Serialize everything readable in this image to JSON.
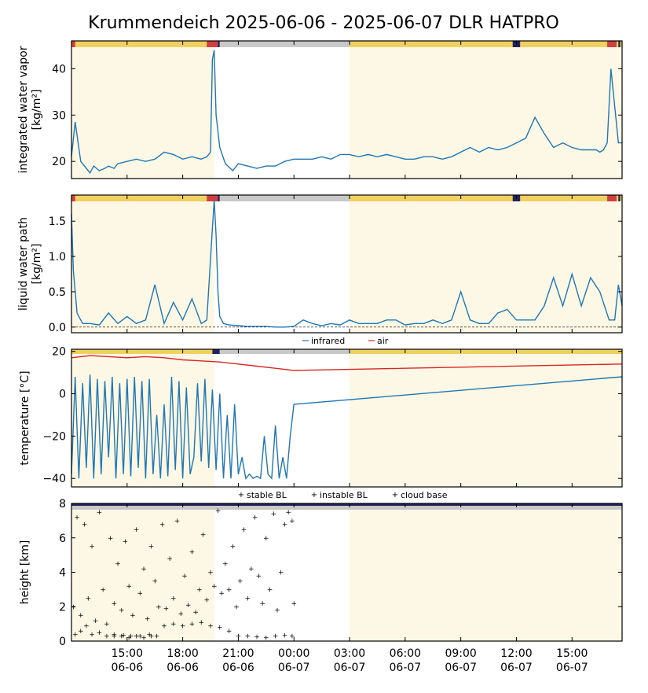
{
  "title": "Krummendeich  2025-06-06 - 2025-06-07  DLR HATPRO",
  "colors": {
    "series": "#1f77b4",
    "air": "#d62728",
    "stable": "#ff7f0e",
    "instable": "#2ca02c",
    "daylight_shade": "#fcf8e5",
    "flag_yellow": "#f0d060",
    "flag_gray": "#c8c8c8",
    "flag_navy": "#23235a",
    "flag_red": "#d04040"
  },
  "x_ticks": [
    {
      "time": "15:00",
      "date": "06-06"
    },
    {
      "time": "18:00",
      "date": "06-06"
    },
    {
      "time": "21:00",
      "date": "06-06"
    },
    {
      "time": "00:00",
      "date": "06-07"
    },
    {
      "time": "03:00",
      "date": "06-07"
    },
    {
      "time": "06:00",
      "date": "06-07"
    },
    {
      "time": "09:00",
      "date": "06-07"
    },
    {
      "time": "12:00",
      "date": "06-07"
    },
    {
      "time": "15:00",
      "date": "06-07"
    }
  ],
  "chart_data": [
    {
      "type": "line",
      "ylabel": "integrated water vapor\n[kg/m²]",
      "x_unit": "hours from 2025-06-06 00:00",
      "xlim": [
        12.0,
        41.7
      ],
      "ylim": [
        16.3,
        46.0
      ],
      "yticks": [
        20,
        30,
        40
      ],
      "series": [
        {
          "x": [
            12.0,
            12.2,
            12.5,
            12.8,
            13.0,
            13.2,
            13.5,
            13.8,
            14.0,
            14.3,
            14.5,
            15.0,
            15.5,
            16.0,
            16.5,
            17.0,
            17.5,
            18.0,
            18.5,
            19.0,
            19.3,
            19.5,
            19.6,
            19.7,
            19.8,
            20.0,
            20.3,
            20.7,
            21.0,
            21.5,
            22.0,
            22.5,
            23.0,
            23.5,
            24.0,
            24.5,
            25.0,
            25.5,
            26.0,
            26.5,
            27.0,
            27.5,
            28.0,
            28.5,
            29.0,
            29.5,
            30.0,
            30.5,
            31.0,
            31.5,
            32.0,
            32.5,
            33.0,
            33.5,
            34.0,
            34.5,
            35.0,
            35.5,
            36.0,
            36.5,
            37.0,
            37.5,
            38.0,
            38.5,
            39.0,
            39.5,
            40.0,
            40.3,
            40.5,
            40.7,
            40.9,
            41.1,
            41.5,
            41.7
          ],
          "values": [
            21,
            28.5,
            20,
            18.5,
            17.5,
            19,
            18,
            18.5,
            19,
            18.5,
            19.5,
            20,
            20.5,
            20,
            20.5,
            22,
            21.5,
            20.5,
            21,
            20.5,
            21,
            22,
            42,
            44,
            30,
            23,
            19.5,
            18,
            19.5,
            19,
            18.5,
            19,
            19,
            20,
            20.5,
            20.5,
            20.5,
            21,
            20.5,
            21.5,
            21.5,
            21,
            21.5,
            21,
            21.5,
            21,
            20.5,
            20.5,
            21,
            21,
            20.5,
            21,
            22,
            23,
            22,
            23,
            22.5,
            23,
            24,
            25,
            29.5,
            26,
            23,
            24,
            23,
            22.5,
            22.5,
            22.5,
            22,
            22.5,
            24,
            40,
            24,
            24
          ]
        }
      ]
    },
    {
      "type": "line",
      "ylabel": "liquid water path\n[kg/m²]",
      "x_unit": "hours from 2025-06-06 00:00",
      "xlim": [
        12.0,
        41.7
      ],
      "ylim": [
        -0.08,
        1.87
      ],
      "yticks": [
        0.0,
        0.5,
        1.0,
        1.5
      ],
      "series": [
        {
          "x": [
            12.0,
            12.1,
            12.3,
            12.6,
            13.0,
            13.5,
            14.0,
            14.5,
            15.0,
            15.5,
            16.0,
            16.5,
            17.0,
            17.5,
            18.0,
            18.5,
            19.0,
            19.3,
            19.6,
            19.7,
            19.8,
            19.9,
            20.0,
            20.2,
            20.5,
            21.0,
            21.5,
            22.0,
            22.5,
            23.0,
            23.5,
            24.0,
            24.5,
            25.0,
            25.5,
            26.0,
            26.5,
            27.0,
            27.5,
            28.0,
            28.5,
            29.0,
            29.5,
            30.0,
            30.5,
            31.0,
            31.5,
            32.0,
            32.5,
            33.0,
            33.5,
            34.0,
            34.5,
            35.0,
            35.5,
            36.0,
            36.5,
            37.0,
            37.5,
            38.0,
            38.5,
            39.0,
            39.5,
            40.0,
            40.5,
            41.0,
            41.3,
            41.5,
            41.7
          ],
          "values": [
            1.6,
            0.8,
            0.2,
            0.05,
            0.05,
            0.03,
            0.2,
            0.05,
            0.15,
            0.05,
            0.1,
            0.6,
            0.05,
            0.35,
            0.1,
            0.4,
            0.05,
            0.1,
            1.4,
            1.8,
            1.3,
            0.5,
            0.15,
            0.05,
            0.03,
            0.02,
            0.01,
            0.01,
            0.01,
            0.0,
            0.0,
            0.01,
            0.1,
            0.05,
            0.02,
            0.05,
            0.03,
            0.1,
            0.05,
            0.05,
            0.05,
            0.1,
            0.1,
            0.03,
            0.05,
            0.05,
            0.1,
            0.05,
            0.1,
            0.5,
            0.1,
            0.05,
            0.05,
            0.2,
            0.25,
            0.1,
            0.1,
            0.1,
            0.3,
            0.7,
            0.3,
            0.75,
            0.3,
            0.7,
            0.5,
            0.1,
            0.1,
            0.6,
            0.3
          ]
        }
      ]
    },
    {
      "type": "line",
      "ylabel": "temperature [°C]",
      "x_unit": "hours from 2025-06-06 00:00",
      "xlim": [
        12.0,
        41.7
      ],
      "ylim": [
        -44,
        21
      ],
      "yticks": [
        -40,
        -20,
        0,
        20
      ],
      "legend": [
        "infrared",
        "air"
      ],
      "series": [
        {
          "name": "infrared",
          "x": [
            12.0,
            12.2,
            12.4,
            12.6,
            12.8,
            13.0,
            13.2,
            13.4,
            13.6,
            13.8,
            14.0,
            14.2,
            14.4,
            14.6,
            14.8,
            15.0,
            15.2,
            15.4,
            15.6,
            15.8,
            16.0,
            16.2,
            16.4,
            16.6,
            16.8,
            17.0,
            17.2,
            17.4,
            17.6,
            17.8,
            18.0,
            18.2,
            18.4,
            18.6,
            18.8,
            19.0,
            19.2,
            19.4,
            19.6,
            19.8,
            20.0,
            20.2,
            20.4,
            20.6,
            20.8,
            21.0,
            21.2,
            21.4,
            21.6,
            21.8,
            22.0,
            22.2,
            22.4,
            22.6,
            22.8,
            23.0,
            23.2,
            23.4,
            23.6,
            23.8,
            24.0,
            41.7
          ],
          "values": [
            -38,
            8,
            -40,
            5,
            -35,
            9,
            -40,
            7,
            -38,
            6,
            -30,
            8,
            -40,
            5,
            -38,
            7,
            -39,
            8,
            -35,
            6,
            -40,
            7,
            -38,
            -10,
            -40,
            -5,
            -39,
            8,
            -36,
            6,
            -40,
            3,
            -38,
            -30,
            5,
            -32,
            7,
            -35,
            2,
            -36,
            0,
            -40,
            -10,
            -40,
            -5,
            -38,
            -30,
            -40,
            -38,
            -40,
            -39,
            -40,
            -20,
            -38,
            -40,
            -15,
            -40,
            -30,
            -40,
            -20,
            -5,
            8
          ]
        },
        {
          "name": "air",
          "x": [
            12.0,
            13.0,
            14.0,
            15.0,
            16.0,
            17.0,
            18.0,
            19.0,
            20.0,
            21.0,
            22.0,
            23.0,
            24.0,
            41.7
          ],
          "values": [
            17,
            18,
            17.5,
            17,
            17.5,
            17,
            16,
            15.5,
            15,
            14,
            13,
            12,
            11,
            14
          ]
        }
      ]
    },
    {
      "type": "scatter",
      "ylabel": "height [km]",
      "x_unit": "hours from 2025-06-06 00:00",
      "xlim": [
        12.0,
        41.7
      ],
      "ylim": [
        0,
        8
      ],
      "yticks": [
        0,
        2,
        4,
        6,
        8
      ],
      "legend": [
        "stable BL",
        "instable BL",
        "cloud base"
      ],
      "series": [
        {
          "name": "stable BL",
          "x": [
            14.3,
            14.8,
            15.2,
            15.7,
            16.2,
            17.0,
            17.5,
            18.0,
            18.5,
            19.0,
            19.5,
            20.0,
            20.5,
            21.0,
            21.5,
            22.0,
            22.5,
            23.0,
            23.5,
            23.9
          ],
          "values": [
            0.3,
            0.35,
            0.3,
            0.3,
            0.4,
            0.9,
            1.0,
            0.9,
            1.0,
            1.1,
            0.9,
            0.8,
            0.6,
            0.3,
            0.3,
            0.25,
            0.2,
            0.3,
            0.35,
            0.3
          ]
        },
        {
          "name": "instable BL",
          "x": [
            12.2,
            12.5,
            12.8,
            13.1,
            13.5,
            13.9,
            14.3,
            14.7,
            15.1,
            15.5,
            15.9,
            16.3,
            16.6
          ],
          "values": [
            0.4,
            0.6,
            0.9,
            0.4,
            0.5,
            0.3,
            0.4,
            0.3,
            0.2,
            0.3,
            0.2,
            0.3,
            0.3
          ]
        },
        {
          "name": "cloud base",
          "x": [
            12.1,
            12.3,
            12.5,
            12.7,
            12.9,
            13.1,
            13.3,
            13.5,
            13.7,
            13.9,
            14.1,
            14.3,
            14.5,
            14.7,
            14.9,
            15.1,
            15.3,
            15.5,
            15.7,
            15.9,
            16.1,
            16.3,
            16.5,
            16.7,
            16.9,
            17.1,
            17.3,
            17.5,
            17.7,
            17.9,
            18.1,
            18.3,
            18.5,
            18.7,
            18.9,
            19.1,
            19.3,
            19.5,
            19.7,
            19.9,
            20.1,
            20.3,
            20.5,
            20.7,
            20.9,
            21.1,
            21.3,
            21.5,
            21.7,
            21.9,
            22.1,
            22.3,
            22.5,
            22.7,
            22.9,
            23.1,
            23.3,
            23.5,
            23.7,
            23.9,
            24.0
          ],
          "values": [
            2.0,
            7.2,
            1.5,
            6.8,
            2.5,
            5.5,
            1.2,
            7.5,
            3.0,
            1.0,
            6.0,
            2.2,
            4.5,
            1.8,
            5.8,
            3.2,
            1.5,
            6.5,
            2.8,
            4.2,
            1.3,
            5.5,
            3.5,
            2.0,
            6.8,
            1.9,
            4.8,
            2.5,
            7.0,
            1.6,
            3.8,
            2.1,
            5.2,
            1.7,
            3.0,
            6.2,
            2.4,
            4.0,
            3.2,
            7.6,
            2.8,
            4.5,
            3.0,
            5.5,
            2.0,
            3.5,
            6.5,
            2.5,
            4.2,
            7.2,
            3.8,
            2.2,
            6.0,
            3.0,
            7.4,
            1.8,
            4.0,
            6.8,
            7.5,
            7.0,
            2.2
          ]
        }
      ]
    }
  ]
}
